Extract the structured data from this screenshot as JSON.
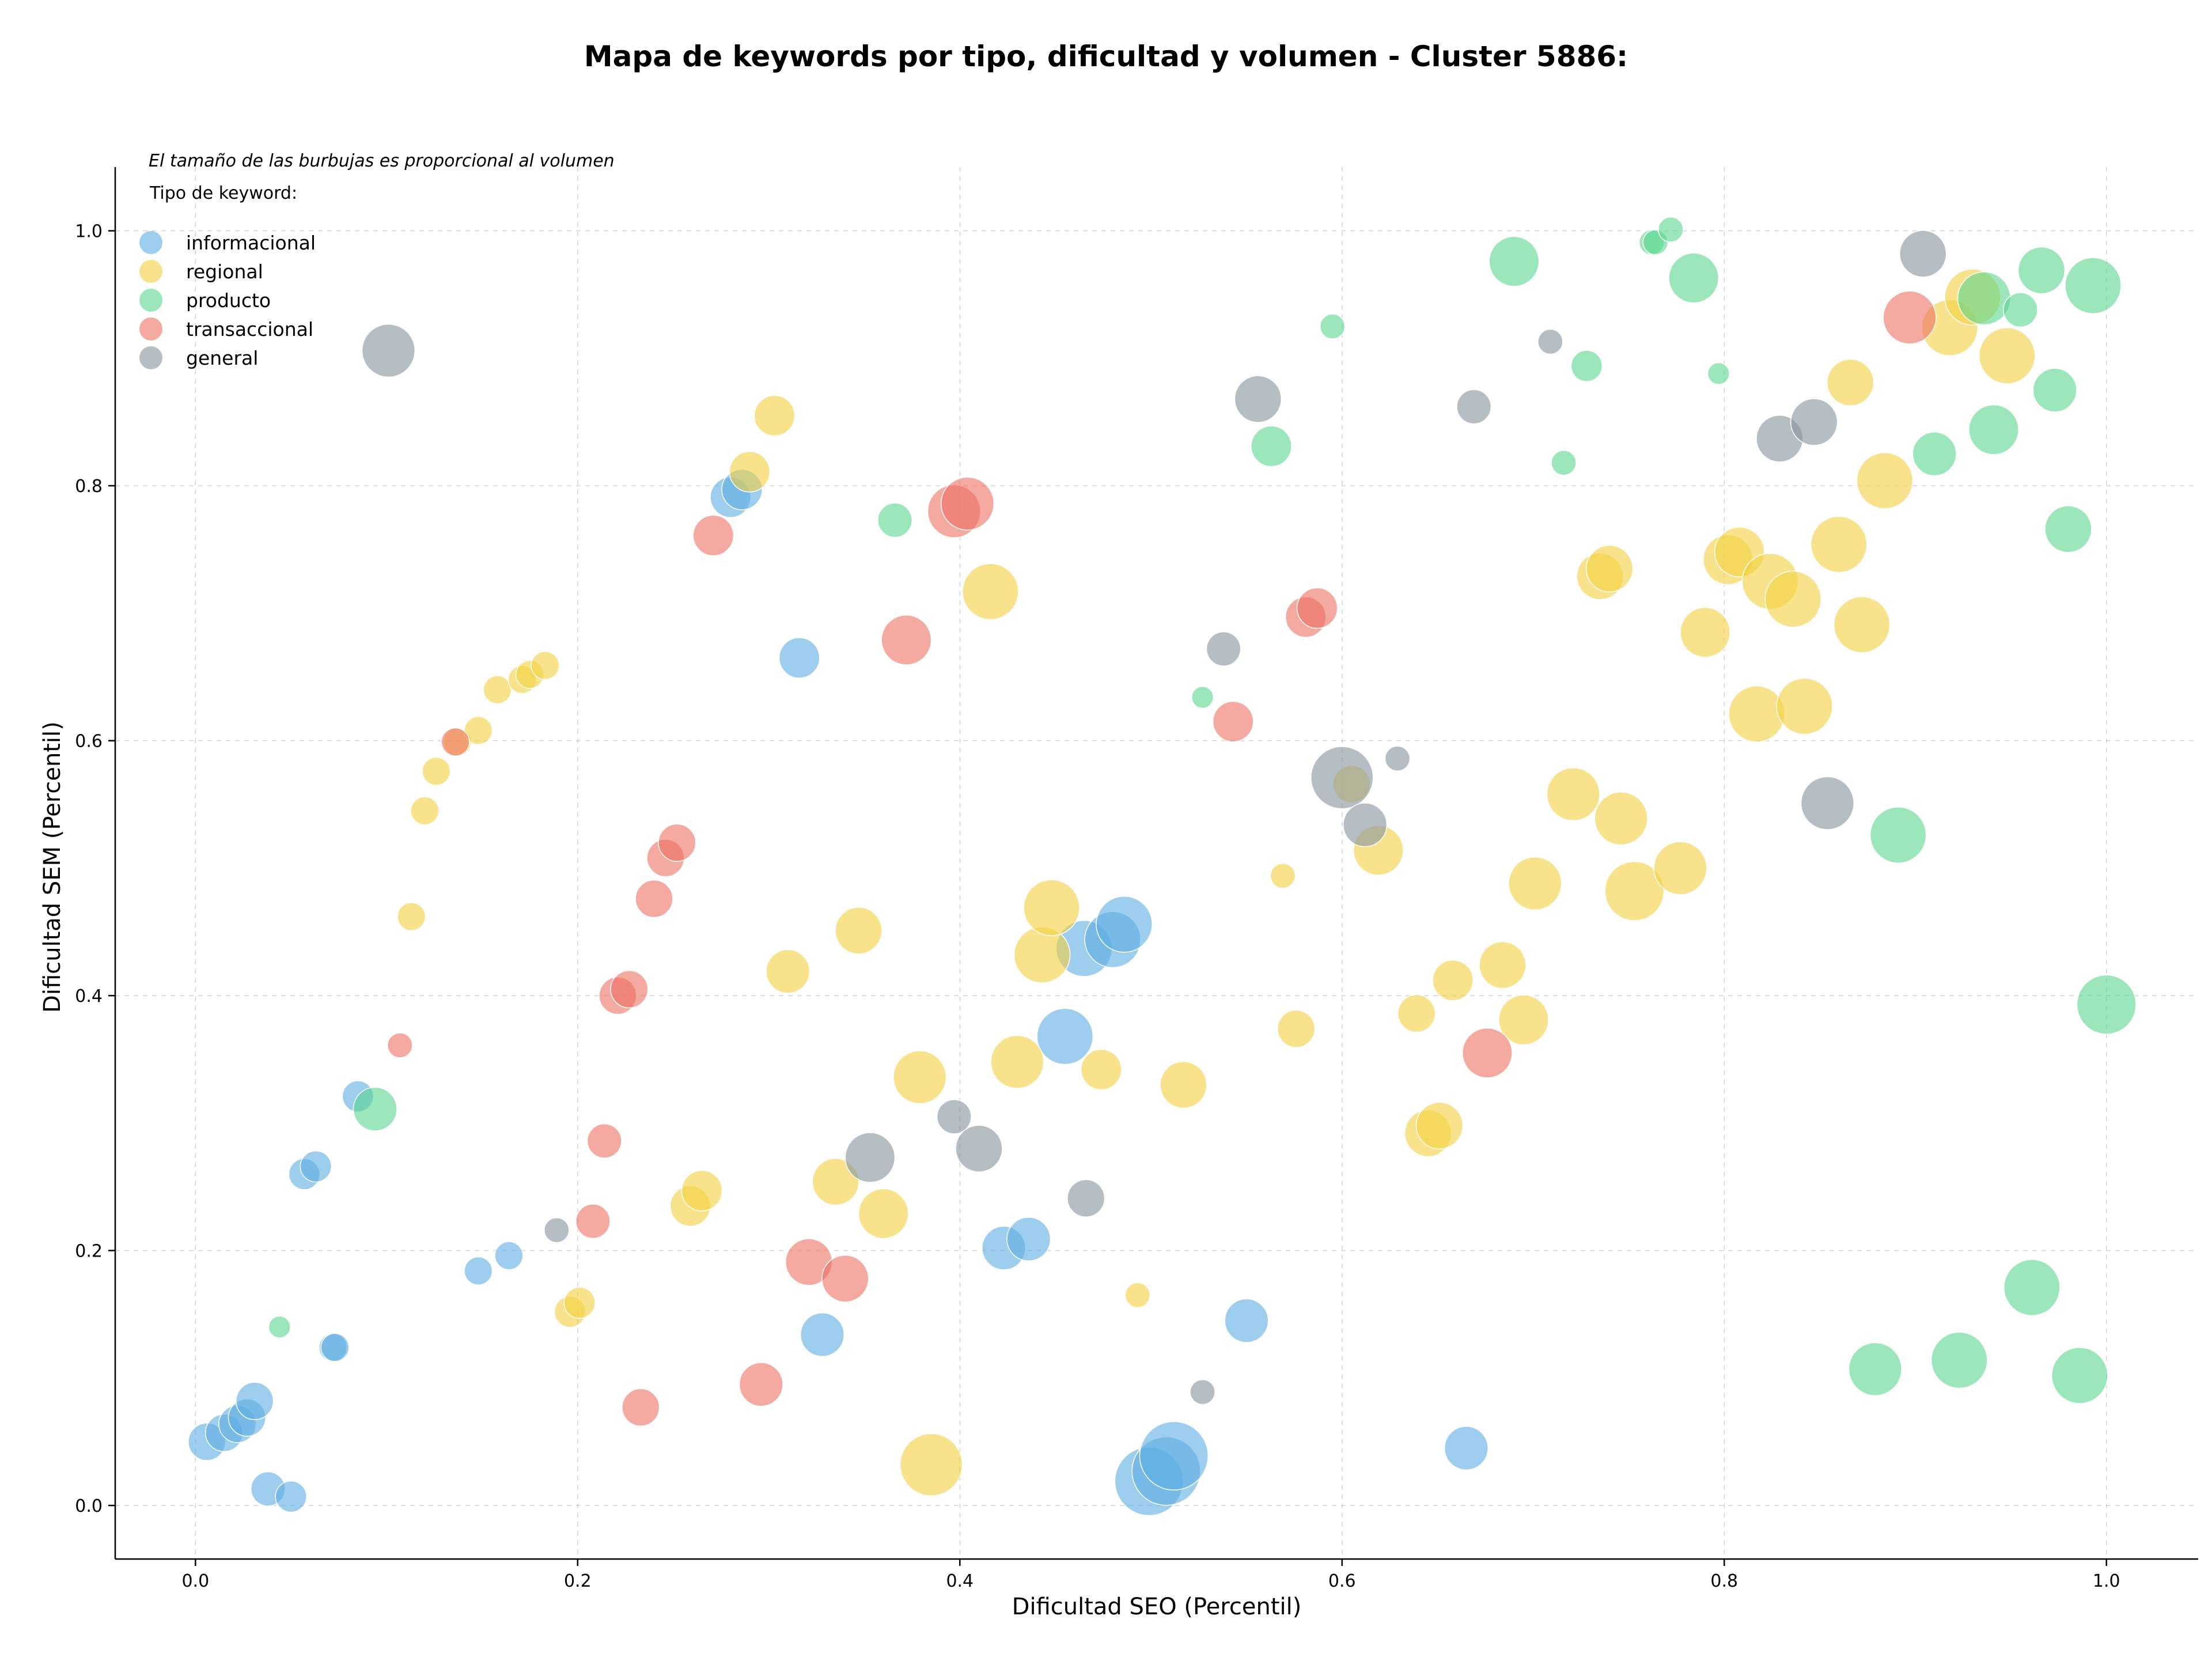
{
  "chart_data": {
    "type": "scatter",
    "title": "Mapa de keywords por tipo, dificultad y volumen - Cluster 5886:",
    "xlabel": "Dificultad SEO (Percentil)",
    "ylabel": "Dificultad SEM (Percentil)",
    "xlim": [
      -0.042,
      1.048
    ],
    "ylim": [
      -0.042,
      1.05
    ],
    "xticks": [
      0.0,
      0.2,
      0.4,
      0.6,
      0.8,
      1.0
    ],
    "yticks": [
      0.0,
      0.2,
      0.4,
      0.6,
      0.8,
      1.0
    ],
    "xtick_labels": [
      "0.0",
      "0.2",
      "0.4",
      "0.6",
      "0.8",
      "1.0"
    ],
    "ytick_labels": [
      "0.0",
      "0.2",
      "0.4",
      "0.6",
      "0.8",
      "1.0"
    ],
    "grid": true,
    "note": "El tamaño de las burbujas es proporcional al volumen",
    "legend_title": "Tipo de keyword:",
    "legend_position": "top-left",
    "series": [
      {
        "name": "informacional",
        "color": "#5dade2",
        "points": [
          {
            "x": 0.006,
            "y": 0.05,
            "r": 1.2
          },
          {
            "x": 0.015,
            "y": 0.057,
            "r": 1.2
          },
          {
            "x": 0.022,
            "y": 0.064,
            "r": 1.2
          },
          {
            "x": 0.027,
            "y": 0.069,
            "r": 1.2
          },
          {
            "x": 0.031,
            "y": 0.082,
            "r": 1.2
          },
          {
            "x": 0.038,
            "y": 0.013,
            "r": 1.1
          },
          {
            "x": 0.05,
            "y": 0.007,
            "r": 1.0
          },
          {
            "x": 0.057,
            "y": 0.26,
            "r": 1.0
          },
          {
            "x": 0.063,
            "y": 0.266,
            "r": 1.0
          },
          {
            "x": 0.072,
            "y": 0.124,
            "r": 0.9
          },
          {
            "x": 0.073,
            "y": 0.124,
            "r": 0.9
          },
          {
            "x": 0.085,
            "y": 0.321,
            "r": 1.0
          },
          {
            "x": 0.148,
            "y": 0.184,
            "r": 0.9
          },
          {
            "x": 0.164,
            "y": 0.196,
            "r": 0.9
          },
          {
            "x": 0.28,
            "y": 0.791,
            "r": 1.3
          },
          {
            "x": 0.286,
            "y": 0.797,
            "r": 1.3
          },
          {
            "x": 0.316,
            "y": 0.665,
            "r": 1.3
          },
          {
            "x": 0.328,
            "y": 0.134,
            "r": 1.4
          },
          {
            "x": 0.423,
            "y": 0.202,
            "r": 1.4
          },
          {
            "x": 0.436,
            "y": 0.209,
            "r": 1.4
          },
          {
            "x": 0.455,
            "y": 0.368,
            "r": 1.8
          },
          {
            "x": 0.465,
            "y": 0.437,
            "r": 1.8
          },
          {
            "x": 0.48,
            "y": 0.444,
            "r": 1.8
          },
          {
            "x": 0.486,
            "y": 0.456,
            "r": 1.8
          },
          {
            "x": 0.499,
            "y": 0.019,
            "r": 2.2
          },
          {
            "x": 0.508,
            "y": 0.027,
            "r": 2.2
          },
          {
            "x": 0.512,
            "y": 0.039,
            "r": 2.2
          },
          {
            "x": 0.55,
            "y": 0.145,
            "r": 1.4
          },
          {
            "x": 0.665,
            "y": 0.045,
            "r": 1.4
          }
        ]
      },
      {
        "name": "regional",
        "color": "#f4d03f",
        "points": [
          {
            "x": 0.113,
            "y": 0.462,
            "r": 0.9
          },
          {
            "x": 0.12,
            "y": 0.545,
            "r": 0.9
          },
          {
            "x": 0.126,
            "y": 0.576,
            "r": 0.9
          },
          {
            "x": 0.137,
            "y": 0.599,
            "r": 0.9
          },
          {
            "x": 0.148,
            "y": 0.608,
            "r": 0.9
          },
          {
            "x": 0.158,
            "y": 0.64,
            "r": 0.9
          },
          {
            "x": 0.171,
            "y": 0.648,
            "r": 0.9
          },
          {
            "x": 0.175,
            "y": 0.652,
            "r": 0.9
          },
          {
            "x": 0.183,
            "y": 0.659,
            "r": 0.9
          },
          {
            "x": 0.196,
            "y": 0.152,
            "r": 1.0
          },
          {
            "x": 0.201,
            "y": 0.159,
            "r": 1.0
          },
          {
            "x": 0.259,
            "y": 0.235,
            "r": 1.3
          },
          {
            "x": 0.265,
            "y": 0.247,
            "r": 1.3
          },
          {
            "x": 0.29,
            "y": 0.811,
            "r": 1.3
          },
          {
            "x": 0.303,
            "y": 0.855,
            "r": 1.3
          },
          {
            "x": 0.31,
            "y": 0.419,
            "r": 1.4
          },
          {
            "x": 0.335,
            "y": 0.254,
            "r": 1.5
          },
          {
            "x": 0.347,
            "y": 0.451,
            "r": 1.5
          },
          {
            "x": 0.36,
            "y": 0.229,
            "r": 1.6
          },
          {
            "x": 0.379,
            "y": 0.336,
            "r": 1.7
          },
          {
            "x": 0.385,
            "y": 0.032,
            "r": 2.0
          },
          {
            "x": 0.416,
            "y": 0.717,
            "r": 1.8
          },
          {
            "x": 0.43,
            "y": 0.348,
            "r": 1.7
          },
          {
            "x": 0.443,
            "y": 0.432,
            "r": 1.8
          },
          {
            "x": 0.448,
            "y": 0.469,
            "r": 1.8
          },
          {
            "x": 0.474,
            "y": 0.342,
            "r": 1.3
          },
          {
            "x": 0.493,
            "y": 0.165,
            "r": 0.8
          },
          {
            "x": 0.517,
            "y": 0.33,
            "r": 1.5
          },
          {
            "x": 0.569,
            "y": 0.494,
            "r": 0.8
          },
          {
            "x": 0.576,
            "y": 0.374,
            "r": 1.2
          },
          {
            "x": 0.605,
            "y": 0.566,
            "r": 1.2
          },
          {
            "x": 0.619,
            "y": 0.514,
            "r": 1.6
          },
          {
            "x": 0.639,
            "y": 0.386,
            "r": 1.2
          },
          {
            "x": 0.645,
            "y": 0.292,
            "r": 1.5
          },
          {
            "x": 0.651,
            "y": 0.298,
            "r": 1.5
          },
          {
            "x": 0.658,
            "y": 0.412,
            "r": 1.3
          },
          {
            "x": 0.684,
            "y": 0.424,
            "r": 1.5
          },
          {
            "x": 0.695,
            "y": 0.381,
            "r": 1.6
          },
          {
            "x": 0.701,
            "y": 0.488,
            "r": 1.7
          },
          {
            "x": 0.721,
            "y": 0.558,
            "r": 1.7
          },
          {
            "x": 0.735,
            "y": 0.729,
            "r": 1.5
          },
          {
            "x": 0.74,
            "y": 0.735,
            "r": 1.5
          },
          {
            "x": 0.746,
            "y": 0.539,
            "r": 1.7
          },
          {
            "x": 0.753,
            "y": 0.482,
            "r": 1.9
          },
          {
            "x": 0.777,
            "y": 0.5,
            "r": 1.7
          },
          {
            "x": 0.79,
            "y": 0.685,
            "r": 1.6
          },
          {
            "x": 0.802,
            "y": 0.742,
            "r": 1.6
          },
          {
            "x": 0.808,
            "y": 0.748,
            "r": 1.6
          },
          {
            "x": 0.817,
            "y": 0.621,
            "r": 1.8
          },
          {
            "x": 0.824,
            "y": 0.725,
            "r": 1.8
          },
          {
            "x": 0.836,
            "y": 0.711,
            "r": 1.8
          },
          {
            "x": 0.842,
            "y": 0.627,
            "r": 1.8
          },
          {
            "x": 0.86,
            "y": 0.754,
            "r": 1.8
          },
          {
            "x": 0.866,
            "y": 0.881,
            "r": 1.5
          },
          {
            "x": 0.872,
            "y": 0.691,
            "r": 1.8
          },
          {
            "x": 0.884,
            "y": 0.804,
            "r": 1.8
          },
          {
            "x": 0.918,
            "y": 0.924,
            "r": 1.8
          },
          {
            "x": 0.93,
            "y": 0.948,
            "r": 1.8
          },
          {
            "x": 0.948,
            "y": 0.902,
            "r": 1.8
          }
        ]
      },
      {
        "name": "producto",
        "color": "#58d68d",
        "points": [
          {
            "x": 0.044,
            "y": 0.14,
            "r": 0.7
          },
          {
            "x": 0.094,
            "y": 0.311,
            "r": 1.4
          },
          {
            "x": 0.366,
            "y": 0.773,
            "r": 1.1
          },
          {
            "x": 0.527,
            "y": 0.634,
            "r": 0.7
          },
          {
            "x": 0.563,
            "y": 0.831,
            "r": 1.3
          },
          {
            "x": 0.595,
            "y": 0.925,
            "r": 0.8
          },
          {
            "x": 0.69,
            "y": 0.976,
            "r": 1.6
          },
          {
            "x": 0.716,
            "y": 0.818,
            "r": 0.8
          },
          {
            "x": 0.728,
            "y": 0.894,
            "r": 1.0
          },
          {
            "x": 0.762,
            "y": 0.991,
            "r": 0.8
          },
          {
            "x": 0.764,
            "y": 0.991,
            "r": 0.8
          },
          {
            "x": 0.772,
            "y": 1.001,
            "r": 0.8
          },
          {
            "x": 0.784,
            "y": 0.963,
            "r": 1.6
          },
          {
            "x": 0.797,
            "y": 0.888,
            "r": 0.7
          },
          {
            "x": 0.879,
            "y": 0.107,
            "r": 1.7
          },
          {
            "x": 0.891,
            "y": 0.526,
            "r": 1.8
          },
          {
            "x": 0.91,
            "y": 0.825,
            "r": 1.4
          },
          {
            "x": 0.923,
            "y": 0.114,
            "r": 1.8
          },
          {
            "x": 0.936,
            "y": 0.947,
            "r": 1.7
          },
          {
            "x": 0.941,
            "y": 0.844,
            "r": 1.6
          },
          {
            "x": 0.955,
            "y": 0.938,
            "r": 1.1
          },
          {
            "x": 0.961,
            "y": 0.171,
            "r": 1.8
          },
          {
            "x": 0.966,
            "y": 0.969,
            "r": 1.5
          },
          {
            "x": 0.973,
            "y": 0.875,
            "r": 1.4
          },
          {
            "x": 0.98,
            "y": 0.766,
            "r": 1.5
          },
          {
            "x": 0.986,
            "y": 0.102,
            "r": 1.8
          },
          {
            "x": 0.993,
            "y": 0.957,
            "r": 1.8
          },
          {
            "x": 1.0,
            "y": 0.393,
            "r": 1.9
          }
        ]
      },
      {
        "name": "transaccional",
        "color": "#ec7063",
        "points": [
          {
            "x": 0.107,
            "y": 0.361,
            "r": 0.8
          },
          {
            "x": 0.136,
            "y": 0.599,
            "r": 0.9
          },
          {
            "x": 0.208,
            "y": 0.223,
            "r": 1.1
          },
          {
            "x": 0.214,
            "y": 0.286,
            "r": 1.1
          },
          {
            "x": 0.221,
            "y": 0.4,
            "r": 1.2
          },
          {
            "x": 0.227,
            "y": 0.405,
            "r": 1.2
          },
          {
            "x": 0.233,
            "y": 0.077,
            "r": 1.2
          },
          {
            "x": 0.24,
            "y": 0.476,
            "r": 1.2
          },
          {
            "x": 0.246,
            "y": 0.508,
            "r": 1.2
          },
          {
            "x": 0.252,
            "y": 0.52,
            "r": 1.2
          },
          {
            "x": 0.271,
            "y": 0.761,
            "r": 1.3
          },
          {
            "x": 0.296,
            "y": 0.095,
            "r": 1.4
          },
          {
            "x": 0.321,
            "y": 0.191,
            "r": 1.5
          },
          {
            "x": 0.34,
            "y": 0.178,
            "r": 1.5
          },
          {
            "x": 0.372,
            "y": 0.679,
            "r": 1.6
          },
          {
            "x": 0.397,
            "y": 0.78,
            "r": 1.7
          },
          {
            "x": 0.404,
            "y": 0.786,
            "r": 1.7
          },
          {
            "x": 0.543,
            "y": 0.615,
            "r": 1.3
          },
          {
            "x": 0.581,
            "y": 0.697,
            "r": 1.3
          },
          {
            "x": 0.587,
            "y": 0.704,
            "r": 1.3
          },
          {
            "x": 0.676,
            "y": 0.355,
            "r": 1.6
          },
          {
            "x": 0.897,
            "y": 0.932,
            "r": 1.7
          }
        ]
      },
      {
        "name": "general",
        "color": "#85929e",
        "points": [
          {
            "x": 0.101,
            "y": 0.906,
            "r": 1.7
          },
          {
            "x": 0.189,
            "y": 0.216,
            "r": 0.8
          },
          {
            "x": 0.353,
            "y": 0.273,
            "r": 1.6
          },
          {
            "x": 0.397,
            "y": 0.305,
            "r": 1.1
          },
          {
            "x": 0.41,
            "y": 0.28,
            "r": 1.5
          },
          {
            "x": 0.466,
            "y": 0.241,
            "r": 1.2
          },
          {
            "x": 0.527,
            "y": 0.089,
            "r": 0.8
          },
          {
            "x": 0.538,
            "y": 0.672,
            "r": 1.1
          },
          {
            "x": 0.556,
            "y": 0.868,
            "r": 1.5
          },
          {
            "x": 0.6,
            "y": 0.571,
            "r": 2.0
          },
          {
            "x": 0.612,
            "y": 0.534,
            "r": 1.4
          },
          {
            "x": 0.629,
            "y": 0.586,
            "r": 0.8
          },
          {
            "x": 0.669,
            "y": 0.862,
            "r": 1.1
          },
          {
            "x": 0.709,
            "y": 0.913,
            "r": 0.8
          },
          {
            "x": 0.829,
            "y": 0.837,
            "r": 1.5
          },
          {
            "x": 0.847,
            "y": 0.85,
            "r": 1.5
          },
          {
            "x": 0.854,
            "y": 0.551,
            "r": 1.7
          },
          {
            "x": 0.904,
            "y": 0.982,
            "r": 1.5
          }
        ]
      }
    ]
  }
}
